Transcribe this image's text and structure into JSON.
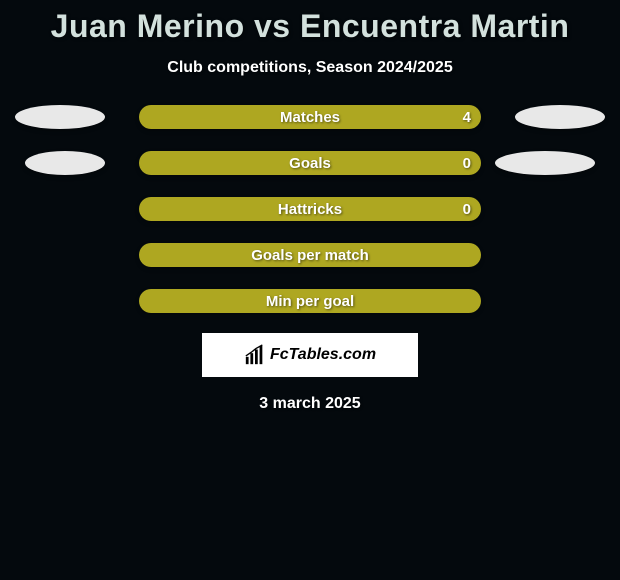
{
  "title": "Juan Merino vs Encuentra Martin",
  "subtitle": "Club competitions, Season 2024/2025",
  "date": "3 march 2025",
  "brand": "FcTables.com",
  "colors": {
    "background": "#04090d",
    "title_color": "#d3e1dd",
    "text_color": "#ffffff",
    "bar_color": "#aea721",
    "ellipse_color": "#e8e8e8"
  },
  "rows": [
    {
      "label": "Matches",
      "value": "4",
      "show_value": true,
      "left_ellipse": true,
      "right_ellipse": true,
      "left_shrink": false,
      "right_shrink": false
    },
    {
      "label": "Goals",
      "value": "0",
      "show_value": true,
      "left_ellipse": true,
      "right_ellipse": true,
      "left_shrink": true,
      "right_shrink": true
    },
    {
      "label": "Hattricks",
      "value": "0",
      "show_value": true,
      "left_ellipse": false,
      "right_ellipse": false,
      "left_shrink": false,
      "right_shrink": false
    },
    {
      "label": "Goals per match",
      "value": "",
      "show_value": false,
      "left_ellipse": false,
      "right_ellipse": false,
      "left_shrink": false,
      "right_shrink": false
    },
    {
      "label": "Min per goal",
      "value": "",
      "show_value": false,
      "left_ellipse": false,
      "right_ellipse": false,
      "left_shrink": false,
      "right_shrink": false
    }
  ]
}
